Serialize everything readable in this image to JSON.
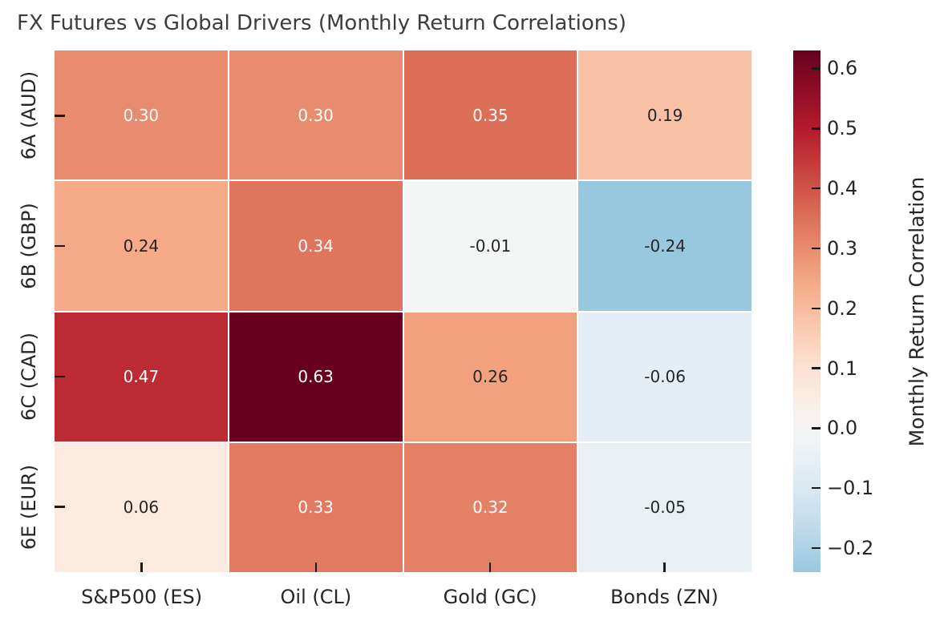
{
  "title": "FX Futures vs Global Drivers (Monthly Return Correlations)",
  "chart_data": {
    "type": "heatmap",
    "rows": [
      "6A (AUD)",
      "6B (GBP)",
      "6C (CAD)",
      "6E (EUR)"
    ],
    "columns": [
      "S&P500 (ES)",
      "Oil (CL)",
      "Gold (GC)",
      "Bonds (ZN)"
    ],
    "values": [
      [
        0.3,
        0.3,
        0.35,
        0.19
      ],
      [
        0.24,
        0.34,
        -0.01,
        -0.24
      ],
      [
        0.47,
        0.63,
        0.26,
        -0.06
      ],
      [
        0.06,
        0.33,
        0.32,
        -0.05
      ]
    ],
    "annotation_format": "2-decimals",
    "colorbar": {
      "label": "Monthly Return Correlation",
      "vmin": -0.24,
      "vmax": 0.63,
      "center": 0,
      "ticks": [
        {
          "value": 0.6,
          "label": "0.6"
        },
        {
          "value": 0.5,
          "label": "0.5"
        },
        {
          "value": 0.4,
          "label": "0.4"
        },
        {
          "value": 0.3,
          "label": "0.3"
        },
        {
          "value": 0.2,
          "label": "0.2"
        },
        {
          "value": 0.1,
          "label": "0.1"
        },
        {
          "value": 0.0,
          "label": "0.0"
        },
        {
          "value": -0.1,
          "label": "−0.1"
        },
        {
          "value": -0.2,
          "label": "−0.2"
        }
      ]
    },
    "colormap": {
      "name": "RdBu_r",
      "stops": [
        "#053061",
        "#2166ac",
        "#4393c3",
        "#92c5de",
        "#d1e5f0",
        "#f7f7f7",
        "#fddbc7",
        "#f4a582",
        "#d6604d",
        "#b2182b",
        "#67001f"
      ]
    },
    "grid": "white-lines-between-cells",
    "legend_position": "right-colorbar"
  },
  "colors": {
    "title_text": "#3d3d3d",
    "axis_text": "#262626",
    "annot_light": "#ffffff",
    "annot_dark": "#262626",
    "tick_mark": "#1a1a1a",
    "background": "#ffffff",
    "max_cell": "#67001f",
    "min_cell": "#98c8df"
  }
}
